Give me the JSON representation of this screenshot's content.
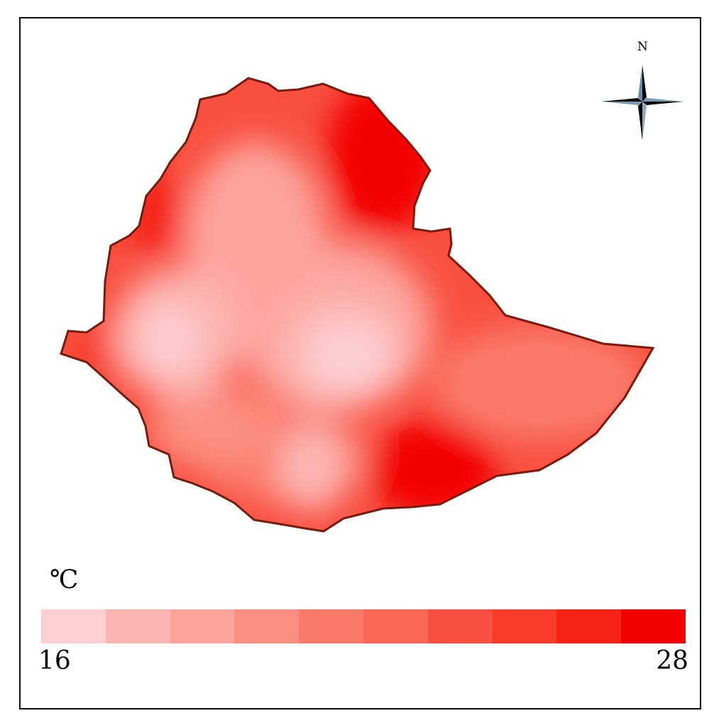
{
  "legend": {
    "unit": "℃",
    "min_label": "16",
    "max_label": "28",
    "colors": [
      "#fdcfd2",
      "#fdb5b2",
      "#fca49c",
      "#fb8e80",
      "#fa7a6a",
      "#f96854",
      "#f85040",
      "#f73c2a",
      "#f52416",
      "#f30000"
    ]
  },
  "compass": {
    "north_label": "N"
  },
  "map": {
    "outline_color": "#7a1a0a"
  }
}
